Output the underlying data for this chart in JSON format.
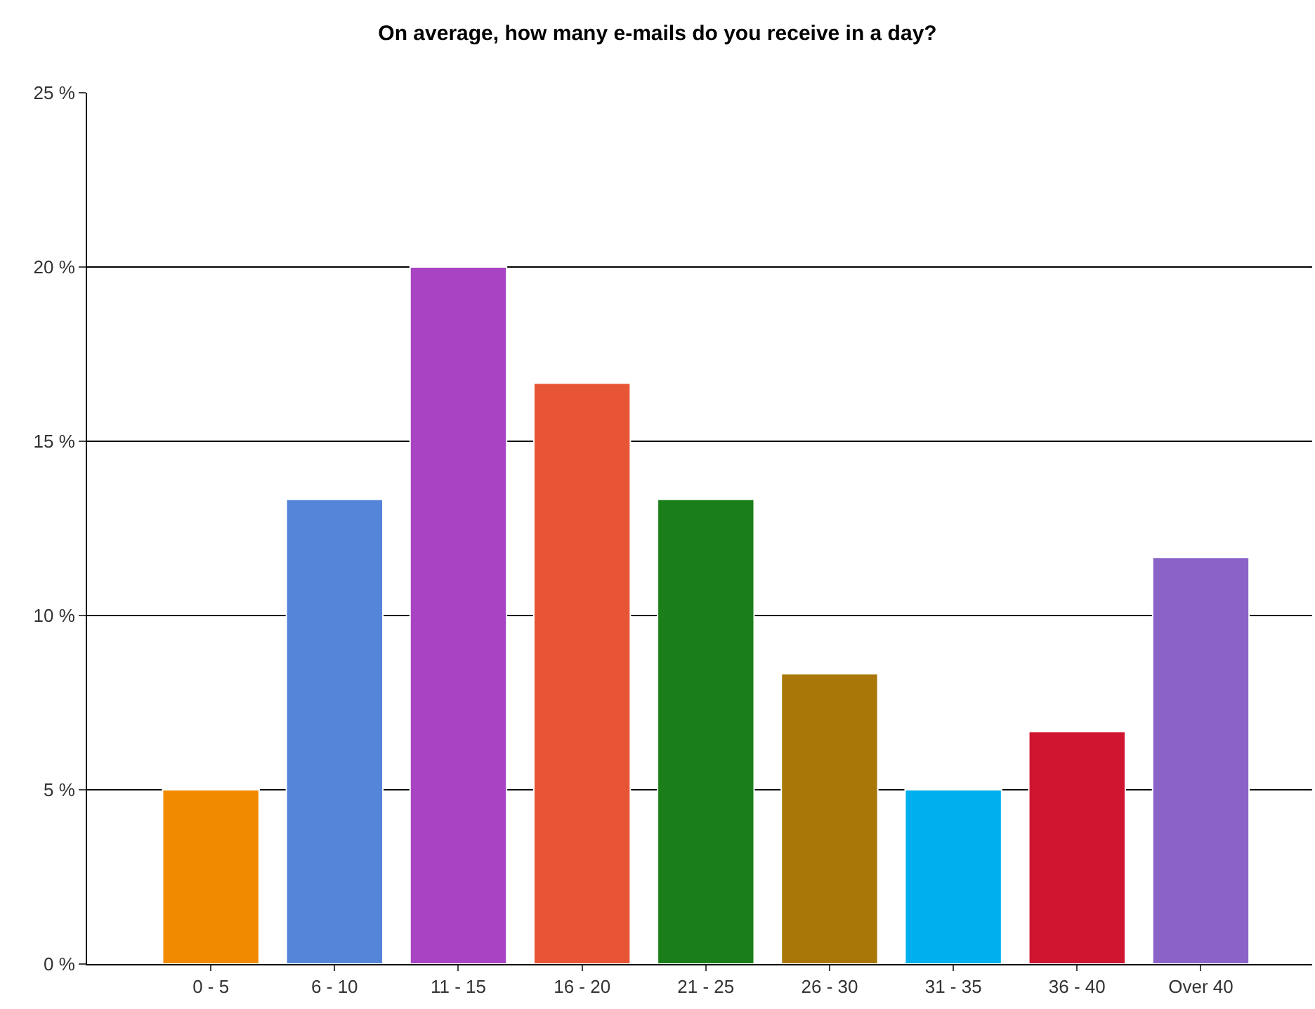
{
  "chart_data": {
    "type": "bar",
    "title": "On average, how many e-mails do you receive in a day?",
    "categories": [
      "0 - 5",
      "6 - 10",
      "11 - 15",
      "16 - 20",
      "21 - 25",
      "26 - 30",
      "31 - 35",
      "36 - 40",
      "Over 40"
    ],
    "values": [
      5,
      13.33,
      20,
      16.67,
      13.33,
      8.33,
      5,
      6.67,
      11.67
    ],
    "colors": [
      "#f28a00",
      "#5585d8",
      "#a844c4",
      "#e85535",
      "#1a7f1a",
      "#a87708",
      "#00b0ee",
      "#d01530",
      "#8a62c8"
    ],
    "ylim": [
      0,
      25
    ],
    "yticks": [
      {
        "value": 0,
        "label": "0 %"
      },
      {
        "value": 5,
        "label": "5 %"
      },
      {
        "value": 10,
        "label": "10 %"
      },
      {
        "value": 15,
        "label": "15 %"
      },
      {
        "value": 20,
        "label": "20 %"
      },
      {
        "value": 25,
        "label": "25 %"
      }
    ],
    "grid": "y"
  }
}
